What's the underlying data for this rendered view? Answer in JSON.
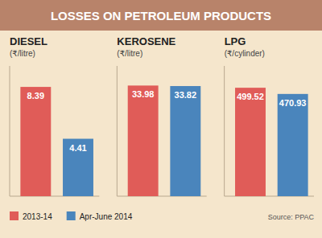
{
  "title": "LOSSES ON PETROLEUM PRODUCTS",
  "annotations": [
    "Source: PPAC"
  ],
  "chart_data": [
    {
      "type": "bar",
      "title": "DIESEL",
      "subtitle": "(₹/litre)",
      "categories": [
        null
      ],
      "series": [
        {
          "name": "2013-14",
          "color": "#e05c58",
          "values": [
            8.39
          ]
        },
        {
          "name": "Apr-June 2014",
          "color": "#4a85bc",
          "values": [
            4.41
          ]
        }
      ],
      "ylim": [
        0,
        10
      ],
      "data_labels": true,
      "tick_labels": false,
      "grid": false,
      "legend": "bottom"
    },
    {
      "type": "bar",
      "title": "KEROSENE",
      "subtitle": "(₹/litre)",
      "categories": [
        null
      ],
      "series": [
        {
          "name": "2013-14",
          "color": "#e05c58",
          "values": [
            33.98
          ]
        },
        {
          "name": "Apr-June 2014",
          "color": "#4a85bc",
          "values": [
            33.82
          ]
        }
      ],
      "ylim": [
        0,
        40
      ],
      "data_labels": true,
      "tick_labels": false,
      "grid": false
    },
    {
      "type": "bar",
      "title": "LPG",
      "subtitle": "(₹/cylinder)",
      "categories": [
        null
      ],
      "series": [
        {
          "name": "2013-14",
          "color": "#e05c58",
          "values": [
            499.52
          ]
        },
        {
          "name": "Apr-June 2014",
          "color": "#4a85bc",
          "values": [
            470.93
          ]
        }
      ],
      "ylim": [
        0,
        600
      ],
      "data_labels": true,
      "tick_labels": false,
      "grid": false
    }
  ]
}
